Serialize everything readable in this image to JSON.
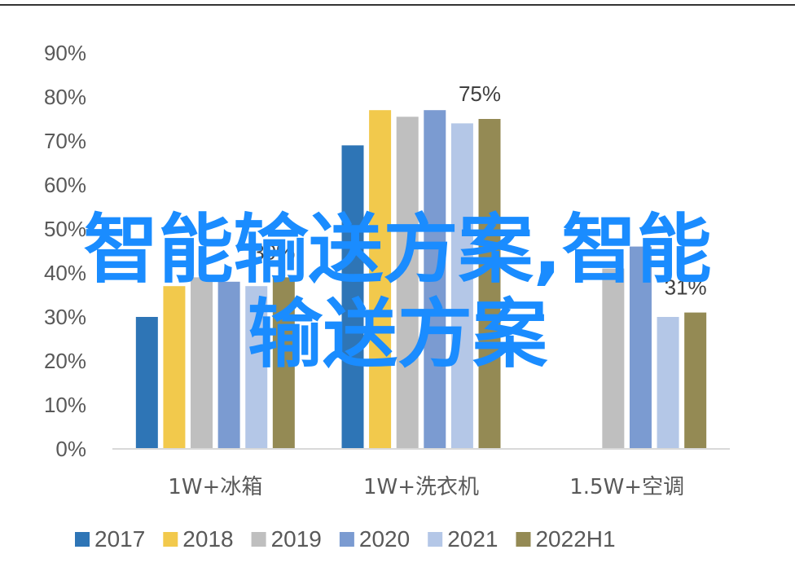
{
  "chart_data": {
    "type": "bar",
    "categories": [
      "1W+冰箱",
      "1W+洗衣机",
      "1.5W+空调"
    ],
    "series": [
      {
        "name": "2017",
        "color": "#2e75b6",
        "values": [
          30,
          69,
          null
        ]
      },
      {
        "name": "2018",
        "color": "#f2c94c",
        "values": [
          37,
          77,
          null
        ]
      },
      {
        "name": "2019",
        "color": "#bfbfbf",
        "values": [
          39,
          75.5,
          41
        ]
      },
      {
        "name": "2020",
        "color": "#7b9bd1",
        "values": [
          38,
          77,
          46
        ]
      },
      {
        "name": "2021",
        "color": "#b4c7e7",
        "values": [
          37,
          74,
          30
        ]
      },
      {
        "name": "2022H1",
        "color": "#948a54",
        "values": [
          39,
          75,
          31
        ]
      }
    ],
    "y_ticks": [
      "0%",
      "10%",
      "20%",
      "30%",
      "40%",
      "50%",
      "60%",
      "70%",
      "80%",
      "90%"
    ],
    "ylim": [
      0,
      90
    ],
    "data_labels": [
      {
        "category_index": 0,
        "series_index": 5,
        "text": "39%"
      },
      {
        "category_index": 1,
        "series_index": 5,
        "text": "75%"
      },
      {
        "category_index": 2,
        "series_index": 5,
        "text": "31%"
      }
    ],
    "legend_position": "bottom",
    "grid": false
  },
  "overlay": {
    "watermark_line1": "智能输送方案,智能",
    "watermark_line2": "输送方案"
  }
}
